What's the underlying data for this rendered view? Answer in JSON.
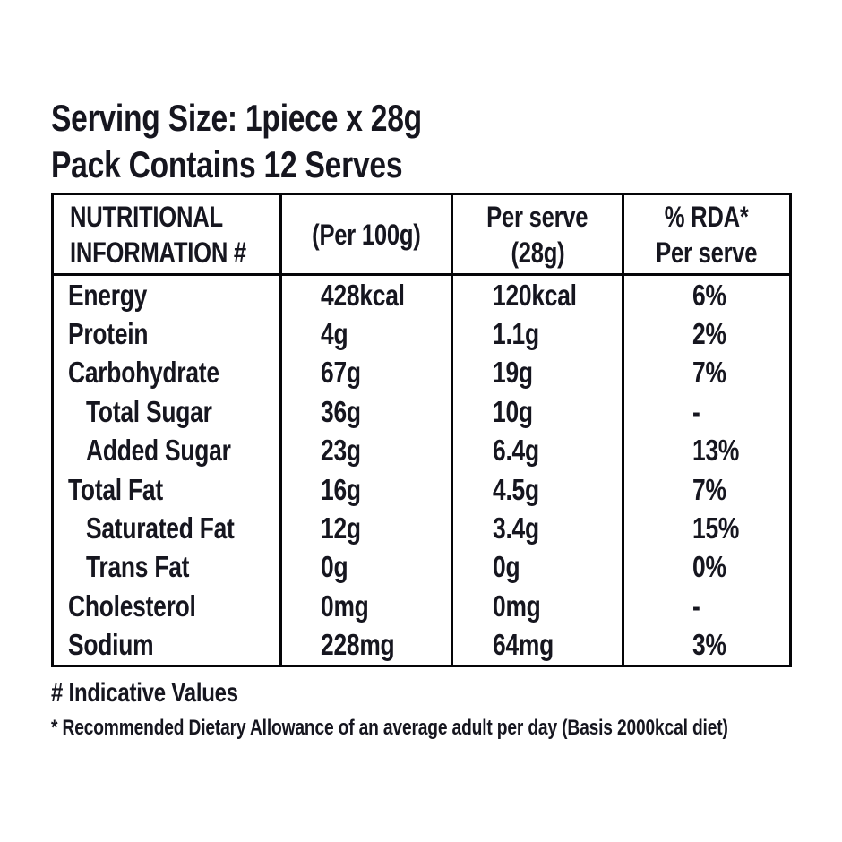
{
  "header": {
    "serving_size": "Serving Size: 1piece x 28g",
    "pack_contains": "Pack Contains 12 Serves"
  },
  "table": {
    "column_headers": {
      "info_line1": "NUTRITIONAL",
      "info_line2": "INFORMATION #",
      "per_100g": "(Per 100g)",
      "per_serve_line1": "Per serve",
      "per_serve_line2": "(28g)",
      "rda_line1": "% RDA*",
      "rda_line2": "Per serve"
    },
    "rows": [
      {
        "label": "Energy",
        "per_100g": "428kcal",
        "per_serve": "120kcal",
        "rda_per_serve": "6%"
      },
      {
        "label": "Protein",
        "per_100g": "4g",
        "per_serve": "1.1g",
        "rda_per_serve": "2%"
      },
      {
        "label": "Carbohydrate",
        "per_100g": "67g",
        "per_serve": "19g",
        "rda_per_serve": "7%"
      },
      {
        "label": "Total Sugar",
        "per_100g": "36g",
        "per_serve": "10g",
        "rda_per_serve": "-"
      },
      {
        "label": "Added Sugar",
        "per_100g": "23g",
        "per_serve": "6.4g",
        "rda_per_serve": "13%"
      },
      {
        "label": "Total Fat",
        "per_100g": "16g",
        "per_serve": "4.5g",
        "rda_per_serve": "7%"
      },
      {
        "label": "Saturated Fat",
        "per_100g": "12g",
        "per_serve": "3.4g",
        "rda_per_serve": "15%"
      },
      {
        "label": "Trans Fat",
        "per_100g": "0g",
        "per_serve": "0g",
        "rda_per_serve": "0%"
      },
      {
        "label": "Cholesterol",
        "per_100g": "0mg",
        "per_serve": "0mg",
        "rda_per_serve": "-"
      },
      {
        "label": "Sodium",
        "per_100g": "228mg",
        "per_serve": "64mg",
        "rda_per_serve": "3%"
      }
    ],
    "indented_rows": [
      "Total Sugar",
      "Added Sugar",
      "Saturated Fat",
      "Trans Fat"
    ]
  },
  "footnotes": {
    "indicative": "# Indicative Values",
    "rda_basis": "* Recommended Dietary Allowance of an average adult per day (Basis 2000kcal diet)"
  },
  "colors": {
    "text": "#16161f",
    "border": "#050508",
    "background": "#ffffff"
  }
}
